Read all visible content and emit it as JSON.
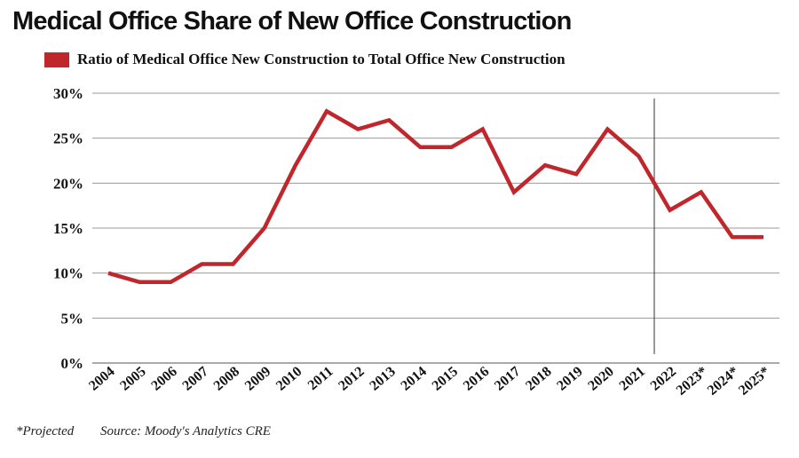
{
  "colors": {
    "series": "#c0272d",
    "grid": "#9a9a9a",
    "divider": "#333333",
    "text": "#111111"
  },
  "footer": {
    "note": "*Projected",
    "source": "Source: Moody's Analytics CRE"
  },
  "chart_data": {
    "type": "line",
    "title": "Medical Office Share of New Office Construction",
    "xlabel": "",
    "ylabel": "",
    "ylim": [
      0,
      30
    ],
    "yticks": [
      "0%",
      "5%",
      "10%",
      "15%",
      "20%",
      "25%",
      "30%"
    ],
    "grid": true,
    "legend_position": "top-left",
    "categories": [
      "2004",
      "2005",
      "2006",
      "2007",
      "2008",
      "2009",
      "2010",
      "2011",
      "2012",
      "2013",
      "2014",
      "2015",
      "2016",
      "2017",
      "2018",
      "2019",
      "2020",
      "2021",
      "2022",
      "2023*",
      "2024*",
      "2025*"
    ],
    "series": [
      {
        "name": "Ratio of Medical Office New Construction to Total Office New Construction",
        "color": "#c0272d",
        "values": [
          10,
          9,
          9,
          11,
          11,
          15,
          22,
          28,
          26,
          27,
          24,
          24,
          26,
          19,
          22,
          21,
          26,
          23,
          17,
          19,
          14,
          14
        ]
      }
    ],
    "annotations": [
      {
        "type": "vertical-line",
        "between": [
          "2021",
          "2022"
        ],
        "position": 0.5
      }
    ]
  }
}
